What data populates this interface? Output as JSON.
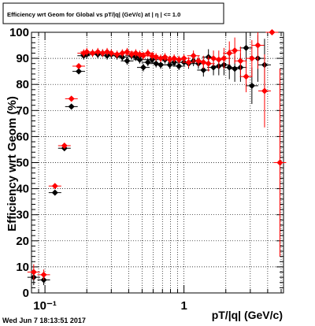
{
  "chart_data": {
    "type": "scatter",
    "title": "Efficiency wrt Geom for Global vs pT/|q| (GeV/c) at | η | <= 1.0",
    "xlabel": "pT/|q| (GeV/c)",
    "ylabel": "Efficiency wrt Geom (%)",
    "timestamp": "Wed Jun  7 18:13:51 2017",
    "x_scale": "log",
    "xlim": [
      0.08,
      5.2
    ],
    "ylim": [
      0,
      100
    ],
    "grid": true,
    "x_ticks": [
      {
        "value": 0.1,
        "label": "10⁻¹"
      },
      {
        "value": 1,
        "label": "1"
      }
    ],
    "y_ticks": [
      0,
      10,
      20,
      30,
      40,
      50,
      60,
      70,
      80,
      90,
      100
    ],
    "colors": {
      "series_a": "#000000",
      "series_b": "#ff0000"
    },
    "series": [
      {
        "color": "#000000",
        "points": [
          [
            0.083,
            6,
            3
          ],
          [
            0.098,
            5,
            2
          ],
          [
            0.118,
            38.5,
            1
          ],
          [
            0.138,
            55.5,
            1
          ],
          [
            0.155,
            71.5,
            1
          ],
          [
            0.175,
            85,
            1
          ],
          [
            0.19,
            91,
            1.5
          ],
          [
            0.2,
            91.5,
            1.5
          ],
          [
            0.22,
            92,
            1.5
          ],
          [
            0.24,
            91.5,
            1.5
          ],
          [
            0.26,
            92,
            1.5
          ],
          [
            0.28,
            91,
            1.5
          ],
          [
            0.3,
            91.5,
            1.5
          ],
          [
            0.33,
            91,
            1.5
          ],
          [
            0.36,
            90.5,
            1.5
          ],
          [
            0.39,
            89,
            1.5
          ],
          [
            0.42,
            91,
            1.5
          ],
          [
            0.45,
            90.5,
            1.5
          ],
          [
            0.48,
            89.5,
            1.5
          ],
          [
            0.51,
            86.5,
            1.5
          ],
          [
            0.55,
            88.5,
            1.5
          ],
          [
            0.59,
            89.5,
            1.5
          ],
          [
            0.63,
            88,
            1.5
          ],
          [
            0.68,
            87.5,
            1.5
          ],
          [
            0.73,
            89.5,
            1.5
          ],
          [
            0.79,
            87.5,
            1.5
          ],
          [
            0.85,
            88.5,
            1.5
          ],
          [
            0.92,
            87,
            1.5
          ],
          [
            1.0,
            88.5,
            1.5
          ],
          [
            1.08,
            88,
            2
          ],
          [
            1.17,
            89,
            2
          ],
          [
            1.27,
            88,
            2
          ],
          [
            1.38,
            85.5,
            2.5
          ],
          [
            1.5,
            90.5,
            3
          ],
          [
            1.63,
            86.5,
            3
          ],
          [
            1.78,
            87,
            3.5
          ],
          [
            1.94,
            87.5,
            4
          ],
          [
            2.12,
            86.5,
            4.5
          ],
          [
            2.32,
            86,
            5
          ],
          [
            2.55,
            86.5,
            5.5
          ],
          [
            2.8,
            94,
            6
          ],
          [
            3.08,
            79.5,
            7
          ],
          [
            3.4,
            90,
            9
          ],
          [
            3.8,
            87.5,
            10
          ]
        ]
      },
      {
        "color": "#ff0000",
        "points": [
          [
            0.083,
            8,
            3
          ],
          [
            0.098,
            7,
            2
          ],
          [
            0.118,
            41,
            1
          ],
          [
            0.138,
            56.5,
            1
          ],
          [
            0.155,
            74.5,
            1
          ],
          [
            0.175,
            87,
            1
          ],
          [
            0.19,
            92,
            1.5
          ],
          [
            0.2,
            92.5,
            1.5
          ],
          [
            0.22,
            92,
            1.5
          ],
          [
            0.24,
            92.5,
            1.5
          ],
          [
            0.26,
            92,
            1.5
          ],
          [
            0.28,
            92.5,
            1.5
          ],
          [
            0.3,
            92,
            1.5
          ],
          [
            0.33,
            91.5,
            1.5
          ],
          [
            0.36,
            92,
            1.5
          ],
          [
            0.39,
            92.5,
            1.5
          ],
          [
            0.42,
            91.5,
            1.5
          ],
          [
            0.45,
            92,
            1.5
          ],
          [
            0.48,
            91.5,
            1.5
          ],
          [
            0.51,
            91,
            1.5
          ],
          [
            0.55,
            92,
            1.5
          ],
          [
            0.59,
            91,
            1.5
          ],
          [
            0.63,
            90.5,
            1.5
          ],
          [
            0.68,
            90,
            1.5
          ],
          [
            0.73,
            90.5,
            1.5
          ],
          [
            0.79,
            89.5,
            1.5
          ],
          [
            0.85,
            90,
            1.5
          ],
          [
            0.92,
            89.5,
            1.5
          ],
          [
            1.0,
            90,
            1.5
          ],
          [
            1.08,
            88.5,
            2
          ],
          [
            1.17,
            91,
            2
          ],
          [
            1.27,
            89,
            2
          ],
          [
            1.38,
            88.5,
            2.5
          ],
          [
            1.5,
            88,
            3
          ],
          [
            1.63,
            90,
            3
          ],
          [
            1.78,
            89.5,
            3.5
          ],
          [
            1.94,
            90,
            4
          ],
          [
            2.12,
            92,
            4.5
          ],
          [
            2.32,
            93,
            5
          ],
          [
            2.55,
            89,
            5.5
          ],
          [
            2.8,
            83,
            6
          ],
          [
            3.08,
            90,
            7
          ],
          [
            3.4,
            95,
            9
          ],
          [
            3.8,
            77.5,
            14
          ],
          [
            4.3,
            100,
            1
          ],
          [
            4.9,
            50,
            36
          ]
        ]
      }
    ]
  }
}
